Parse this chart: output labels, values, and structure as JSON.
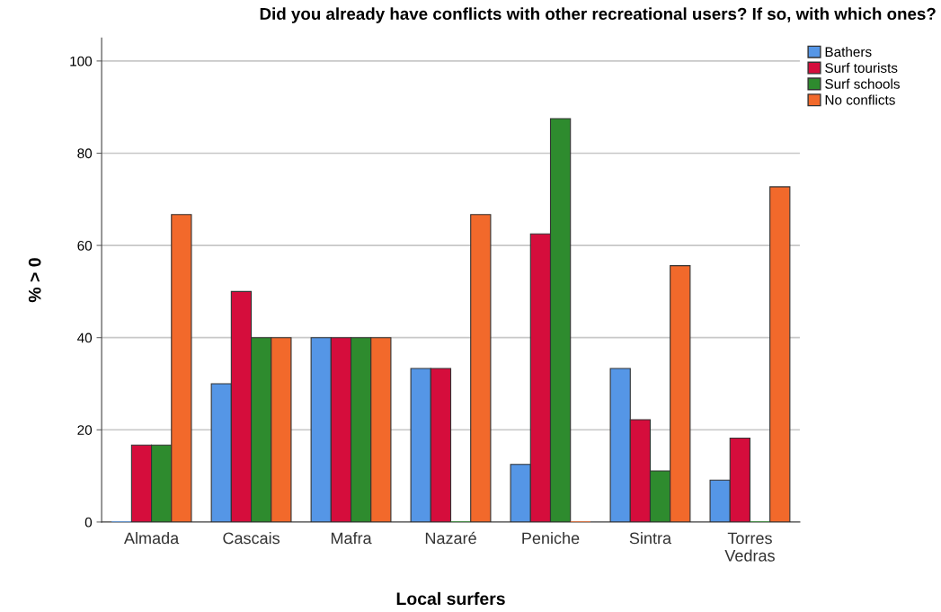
{
  "chart_data": {
    "type": "bar",
    "title": "Did you already have conflicts with other recreational users? If so, with which ones?",
    "xlabel": "Local surfers",
    "ylabel": "% > 0",
    "categories": [
      "Almada",
      "Cascais",
      "Mafra",
      "Nazaré",
      "Peniche",
      "Sintra",
      "Torres\nVedras"
    ],
    "series": [
      {
        "name": "Bathers",
        "color": "#5596e6",
        "values": [
          0,
          30,
          40,
          33.3,
          12.5,
          33.3,
          9.1
        ]
      },
      {
        "name": "Surf tourists",
        "color": "#d50d3c",
        "values": [
          16.7,
          50,
          40,
          33.3,
          62.5,
          22.2,
          18.2
        ]
      },
      {
        "name": "Surf schools",
        "color": "#2e8b2e",
        "values": [
          16.7,
          40,
          40,
          0,
          87.5,
          11.1,
          0
        ]
      },
      {
        "name": "No conflicts",
        "color": "#f2692b",
        "values": [
          66.7,
          40,
          40,
          66.7,
          0,
          55.6,
          72.7
        ]
      }
    ],
    "ylim": [
      0,
      105
    ],
    "yticks": [
      0,
      20,
      40,
      60,
      80,
      100
    ],
    "grid": "y",
    "legend": "top right"
  }
}
